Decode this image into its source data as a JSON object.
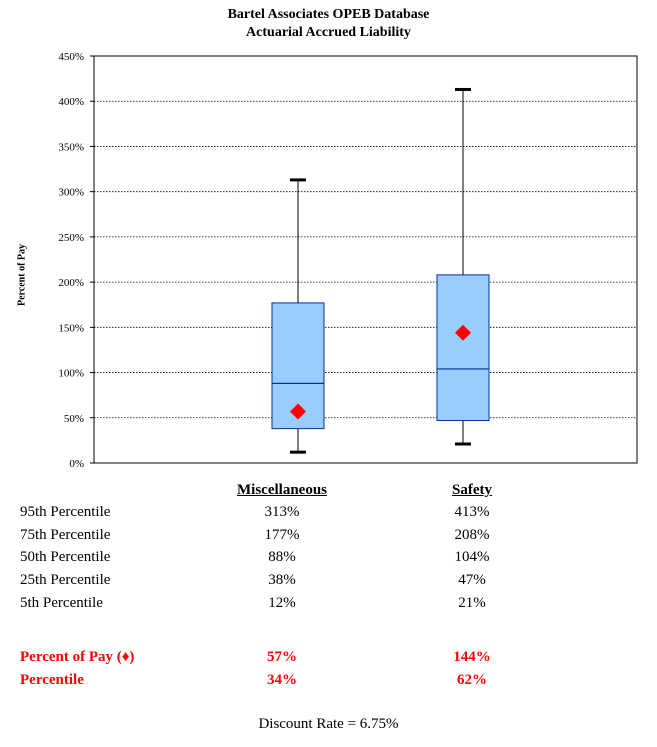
{
  "chart_data": {
    "type": "box",
    "title": "Bartel Associates OPEB Database",
    "subtitle": "Actuarial Accrued Liability",
    "ylabel": "Percent of Pay",
    "ylim": [
      0,
      450
    ],
    "yticks": [
      0,
      50,
      100,
      150,
      200,
      250,
      300,
      350,
      400,
      450
    ],
    "ytick_labels": [
      "0%",
      "50%",
      "100%",
      "150%",
      "200%",
      "250%",
      "300%",
      "350%",
      "400%",
      "450%"
    ],
    "grid": true,
    "categories": [
      "Miscellaneous",
      "Safety"
    ],
    "series": [
      {
        "name": "Miscellaneous",
        "p5": 12,
        "p25": 38,
        "p50": 88,
        "p75": 177,
        "p95": 313,
        "marker": 57
      },
      {
        "name": "Safety",
        "p5": 21,
        "p25": 47,
        "p50": 104,
        "p75": 208,
        "p95": 413,
        "marker": 144
      }
    ],
    "colors": {
      "box_fill": "#99ccff",
      "box_stroke": "#003399",
      "marker": "#ff0000"
    }
  },
  "table": {
    "headers": [
      "Miscellaneous",
      "Safety"
    ],
    "rows": [
      {
        "label": "95th Percentile",
        "misc": "313%",
        "safety": "413%"
      },
      {
        "label": "75th Percentile",
        "misc": "177%",
        "safety": "208%"
      },
      {
        "label": "50th Percentile",
        "misc": "88%",
        "safety": "104%"
      },
      {
        "label": "25th Percentile",
        "misc": "38%",
        "safety": "47%"
      },
      {
        "label": "5th Percentile",
        "misc": "12%",
        "safety": "21%"
      }
    ],
    "highlight_rows": [
      {
        "label": "Percent of Pay (♦)",
        "misc": "57%",
        "safety": "144%"
      },
      {
        "label": "Percentile",
        "misc": "34%",
        "safety": "62%"
      }
    ]
  },
  "footer": "Discount Rate = 6.75%"
}
